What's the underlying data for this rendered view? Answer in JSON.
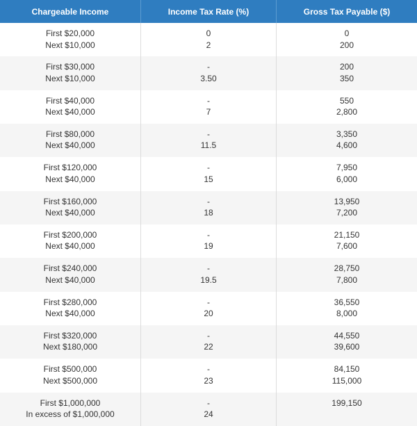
{
  "table": {
    "headers": [
      "Chargeable Income",
      "Income Tax Rate (%)",
      "Gross Tax Payable ($)"
    ],
    "rows": [
      [
        [
          "First $20,000",
          "Next $10,000"
        ],
        [
          "0",
          "2"
        ],
        [
          "0",
          "200"
        ]
      ],
      [
        [
          "First $30,000",
          "Next $10,000"
        ],
        [
          "-",
          "3.50"
        ],
        [
          "200",
          "350"
        ]
      ],
      [
        [
          "First $40,000",
          "Next $40,000"
        ],
        [
          "-",
          "7"
        ],
        [
          "550",
          "2,800"
        ]
      ],
      [
        [
          "First $80,000",
          "Next $40,000"
        ],
        [
          "-",
          "11.5"
        ],
        [
          "3,350",
          "4,600"
        ]
      ],
      [
        [
          "First $120,000",
          "Next $40,000"
        ],
        [
          "-",
          "15"
        ],
        [
          "7,950",
          "6,000"
        ]
      ],
      [
        [
          "First $160,000",
          "Next $40,000"
        ],
        [
          "-",
          "18"
        ],
        [
          "13,950",
          "7,200"
        ]
      ],
      [
        [
          "First $200,000",
          "Next $40,000"
        ],
        [
          "-",
          "19"
        ],
        [
          "21,150",
          "7,600"
        ]
      ],
      [
        [
          "First $240,000",
          "Next $40,000"
        ],
        [
          "-",
          "19.5"
        ],
        [
          "28,750",
          "7,800"
        ]
      ],
      [
        [
          "First $280,000",
          "Next $40,000"
        ],
        [
          "-",
          "20"
        ],
        [
          "36,550",
          "8,000"
        ]
      ],
      [
        [
          "First $320,000",
          "Next $180,000"
        ],
        [
          "-",
          "22"
        ],
        [
          "44,550",
          "39,600"
        ]
      ],
      [
        [
          "First $500,000",
          "Next $500,000"
        ],
        [
          "-",
          "23"
        ],
        [
          "84,150",
          "115,000"
        ]
      ],
      [
        [
          "First $1,000,000",
          "In excess of $1,000,000"
        ],
        [
          "-",
          "24"
        ],
        [
          "199,150",
          ""
        ]
      ]
    ]
  }
}
